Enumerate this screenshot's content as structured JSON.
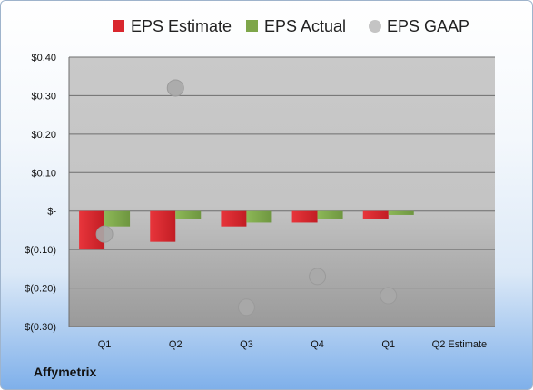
{
  "company": "Affymetrix",
  "colors": {
    "estimate": "#d9272e",
    "actual": "#7ea64a",
    "gaap": "#a8a8a8"
  },
  "chart_data": {
    "type": "bar",
    "categories": [
      "Q1",
      "Q2",
      "Q3",
      "Q4",
      "Q1",
      "Q2 Estimate"
    ],
    "ytick_labels": [
      "$0.40",
      "$0.30",
      "$0.20",
      "$0.10",
      "$-",
      "$(0.10)",
      "$(0.20)",
      "$(0.30)"
    ],
    "ytick_values": [
      0.4,
      0.3,
      0.2,
      0.1,
      0,
      -0.1,
      -0.2,
      -0.3
    ],
    "ylim": [
      -0.3,
      0.4
    ],
    "grid": true,
    "legend_position": "top",
    "series": [
      {
        "name": "EPS Estimate",
        "type": "bar",
        "values": [
          -0.1,
          -0.08,
          -0.04,
          -0.03,
          -0.02,
          null
        ]
      },
      {
        "name": "EPS Actual",
        "type": "bar",
        "values": [
          -0.04,
          -0.02,
          -0.03,
          -0.02,
          -0.01,
          null
        ]
      },
      {
        "name": "EPS GAAP",
        "type": "scatter",
        "values": [
          -0.06,
          0.32,
          -0.25,
          -0.17,
          -0.22,
          null
        ]
      }
    ]
  }
}
